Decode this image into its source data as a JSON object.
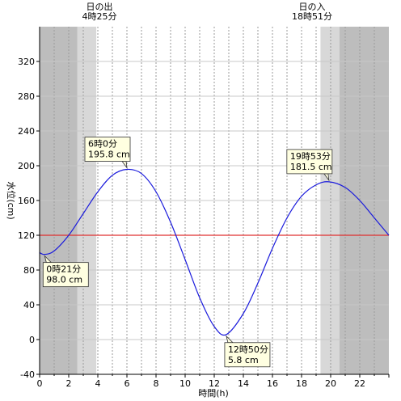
{
  "chart_data": {
    "type": "line",
    "xlabel": "時間(h)",
    "ylabel": "水位(cm)",
    "xlim": [
      0,
      24
    ],
    "ylim": [
      -40,
      360
    ],
    "x_ticks": [
      0,
      2,
      4,
      6,
      8,
      10,
      12,
      14,
      16,
      18,
      20,
      22
    ],
    "y_ticks": [
      -40,
      0,
      40,
      80,
      120,
      160,
      200,
      240,
      280,
      320
    ],
    "grid": "vertical dotted every 1h, horizontal every 40cm",
    "reference_line": {
      "value": 120,
      "color": "#e03030"
    },
    "line_color": "#1a1adc",
    "shading": [
      {
        "from": 0,
        "to": 2.6,
        "shade": "dark"
      },
      {
        "from": 2.6,
        "to": 3.9,
        "shade": "medium"
      },
      {
        "from": 3.9,
        "to": 19.3,
        "shade": "light"
      },
      {
        "from": 19.3,
        "to": 20.6,
        "shade": "medium"
      },
      {
        "from": 20.6,
        "to": 24,
        "shade": "dark"
      }
    ],
    "shade_colors": {
      "dark": "#bdbdbd",
      "medium": "#d8d8d8",
      "light": "#ffffff"
    },
    "sunrise": {
      "label": "日の出",
      "time": "4時25分"
    },
    "sunset": {
      "label": "日の入",
      "time": "18時51分"
    },
    "series": [
      {
        "x": [
          0,
          0.35,
          1,
          2,
          3,
          4,
          5,
          6,
          7,
          8,
          9,
          10,
          11,
          12,
          12.83,
          14,
          15,
          16,
          17,
          18,
          19,
          19.88,
          21,
          22,
          23,
          24
        ],
        "values": [
          100,
          98,
          102,
          120,
          145,
          170,
          189,
          195.8,
          191,
          170,
          135,
          92,
          48,
          15,
          5.8,
          30,
          65,
          105,
          140,
          165,
          178,
          181.5,
          175,
          160,
          140,
          120
        ]
      }
    ],
    "annotations": [
      {
        "time": "6時0分",
        "level": "195.8 cm",
        "x": 6.0,
        "y": 195.8,
        "place": "above"
      },
      {
        "time": "19時53分",
        "level": "181.5 cm",
        "x": 19.88,
        "y": 181.5,
        "place": "above"
      },
      {
        "time": "0時21分",
        "level": "98.0 cm",
        "x": 0.35,
        "y": 98.0,
        "place": "below"
      },
      {
        "time": "12時50分",
        "level": "5.8 cm",
        "x": 12.83,
        "y": 5.8,
        "place": "below"
      }
    ]
  }
}
